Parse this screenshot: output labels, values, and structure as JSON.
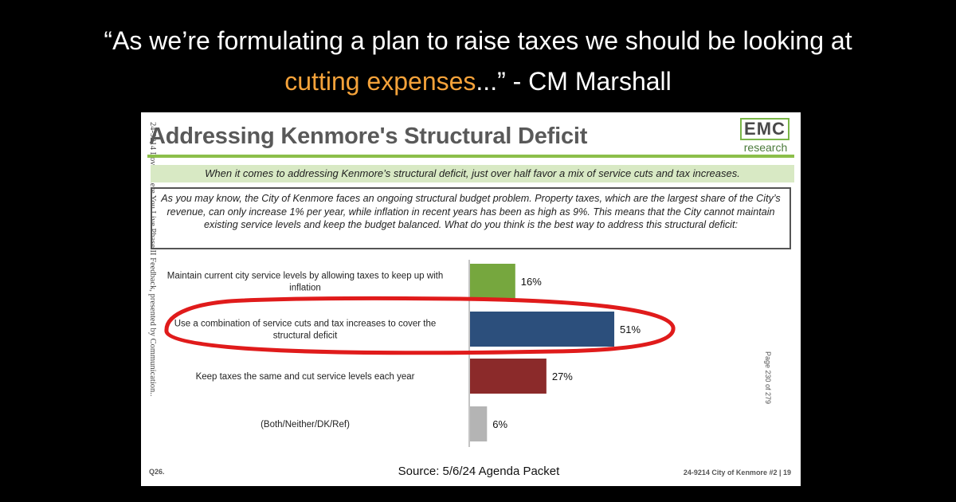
{
  "quote": {
    "line1": "“As we’re formulating a plan to raise taxes we should be looking at",
    "highlight": "cutting expenses",
    "line2_rest": "...” - CM Marshall"
  },
  "colors": {
    "accent": "#f4a23a",
    "bar_green": "#76a73e",
    "bar_blue": "#2c4f7c",
    "bar_red": "#8b2a2a",
    "bar_gray": "#b4b4b4",
    "annotation_red": "#e01b1b"
  },
  "slide": {
    "title": "Addressing Kenmore's Structural Deficit",
    "logo_main": "EMC",
    "logo_sub": "research",
    "summary": "When it comes to addressing Kenmore’s structural deficit, just over half favor a mix of service cuts and tax increases.",
    "question": "As you may know, the City of Kenmore faces an ongoing structural budget problem. Property taxes, which are the largest share of the City’s revenue, can only increase 1% per year, while inflation in recent years has been as high as 9%. This means that the City cannot maintain existing service levels and keep the budget balanced. What do you think is the best way to address this structural deficit:",
    "side_text": "24-9214 Love Where You Live Phase II Feedback, presented by Communication...",
    "page_note": "Page 230 of 279",
    "question_id": "Q26.",
    "source": "Source: 5/6/24 Agenda Packet",
    "footer_right": "24-9214 City of Kenmore #2 | 19"
  },
  "chart_data": {
    "type": "bar",
    "orientation": "horizontal",
    "categories": [
      [
        "Maintain current city service levels by allowing taxes to keep up with",
        "inflation"
      ],
      [
        "Use a combination of service cuts and tax increases to cover the",
        "structural deficit"
      ],
      [
        "Keep taxes the same and cut service levels each year"
      ],
      [
        "(Both/Neither/DK/Ref)"
      ]
    ],
    "values": [
      16,
      51,
      27,
      6
    ],
    "value_labels": [
      "16%",
      "51%",
      "27%",
      "6%"
    ],
    "bar_colors": [
      "#76a73e",
      "#2c4f7c",
      "#8b2a2a",
      "#b4b4b4"
    ],
    "xlim": [
      0,
      100
    ],
    "highlighted_index": 1,
    "title": "",
    "xlabel": "",
    "ylabel": ""
  }
}
